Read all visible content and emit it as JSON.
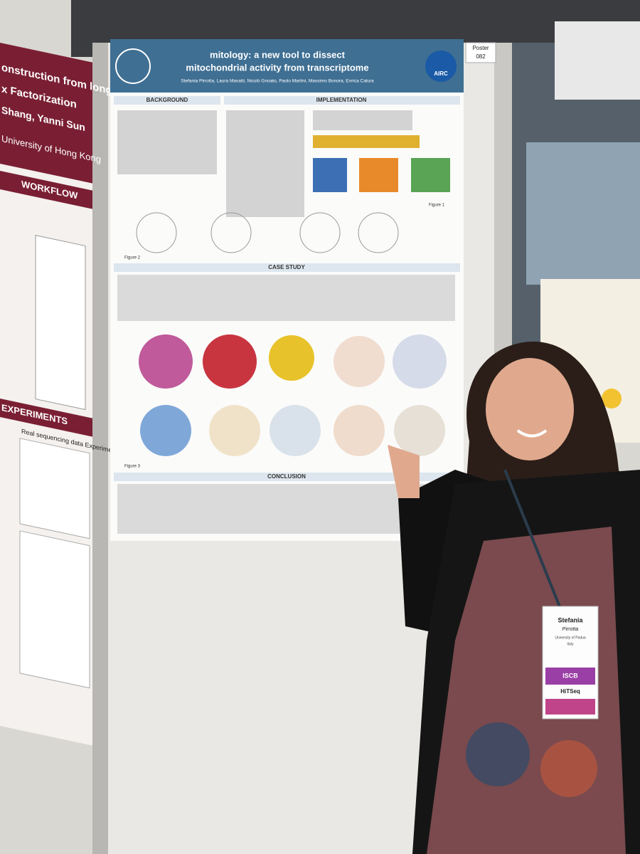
{
  "poster_number": {
    "label": "Poster",
    "number": "082"
  },
  "main_poster": {
    "title": {
      "line1": "mitology: a new tool to dissect",
      "line2": "mitochondrial activity from transcriptome"
    },
    "authors": "Stefania Pirrotta, Laura Masatti, Nicolò Gnoato, Paolo Martini, Massimo Bonora, Enrica Calura",
    "logo": "AIRC",
    "sections": [
      "BACKGROUND",
      "IMPLEMENTATION",
      "CASE STUDY",
      "CONCLUSION"
    ],
    "figures": [
      "Figure 1",
      "Figure 2",
      "Figure 3"
    ]
  },
  "left_poster": {
    "title_lines": [
      "onstruction from long read",
      "x Factorization",
      "Shang, Yanni Sun"
    ],
    "affiliation": "University of Hong Kong",
    "sections": [
      "WORKFLOW",
      "EXPERIMENTS"
    ],
    "table_title": "Real sequencing data Experiments"
  },
  "badge": {
    "first_name": "Stefania",
    "last_name": "Pirrotta",
    "affiliation": "University of Padua",
    "country": "Italy",
    "org": "ISCB",
    "track": "HiTSeq"
  }
}
